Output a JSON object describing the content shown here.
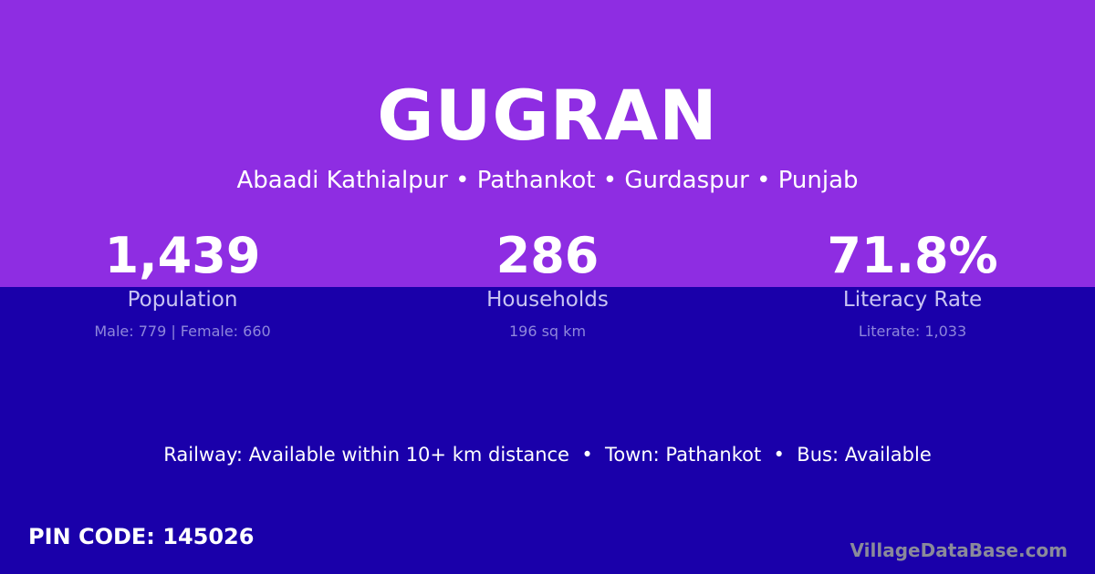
{
  "title": "GUGRAN",
  "location": "Abaadi Kathialpur • Pathankot • Gurdaspur • Punjab",
  "stats": [
    {
      "value": "1,439",
      "label": "Population",
      "sub": "Male: 779 | Female: 660"
    },
    {
      "value": "286",
      "label": "Households",
      "sub": "196 sq km"
    },
    {
      "value": "71.8%",
      "label": "Literacy Rate",
      "sub": "Literate: 1,033"
    }
  ],
  "amenities": "Railway: Available within 10+ km distance  •  Town: Pathankot  •  Bus: Available",
  "pin_code": "PIN CODE: 145026",
  "brand": "VillageDataBase.com",
  "colors": {
    "top_bg": "#8e2de2",
    "bottom_bg": "#1a00aa"
  }
}
